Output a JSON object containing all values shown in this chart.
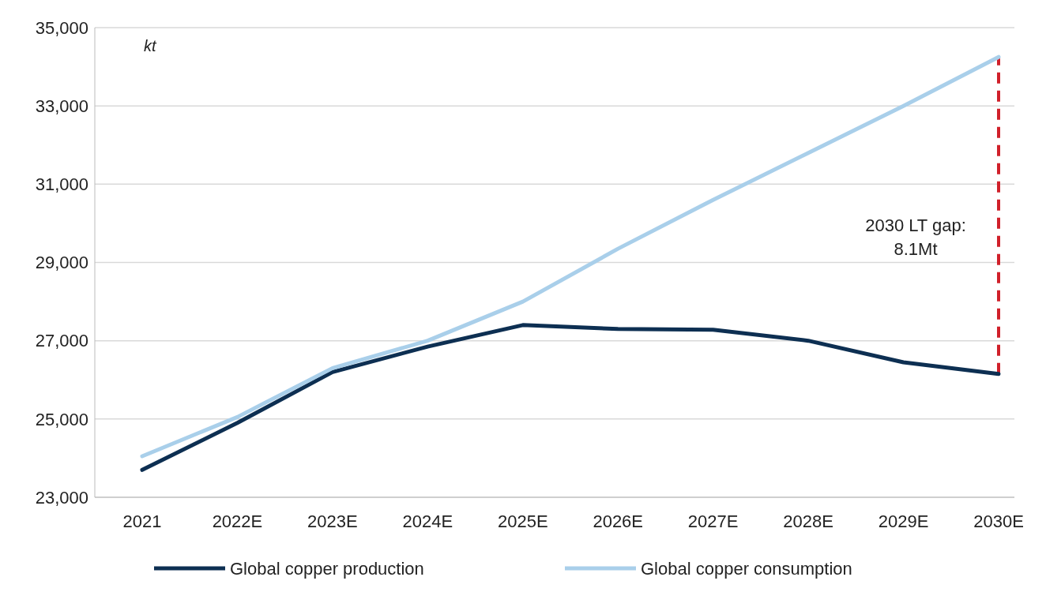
{
  "chart_data": {
    "type": "line",
    "ylabel": "kt",
    "categories": [
      "2021",
      "2022E",
      "2023E",
      "2024E",
      "2025E",
      "2026E",
      "2027E",
      "2028E",
      "2029E",
      "2030E"
    ],
    "series": [
      {
        "name": "Global copper production",
        "color": "#0d2f52",
        "values": [
          23700,
          24900,
          26200,
          26850,
          27400,
          27300,
          27280,
          27000,
          26450,
          26150
        ]
      },
      {
        "name": "Global copper consumption",
        "color": "#a9cfea",
        "values": [
          24050,
          25050,
          26300,
          27000,
          28000,
          29350,
          30600,
          31800,
          33000,
          34250
        ]
      }
    ],
    "ylim": [
      23000,
      35000
    ],
    "yticks": [
      {
        "value": 23000,
        "label": "23,000"
      },
      {
        "value": 25000,
        "label": "25,000"
      },
      {
        "value": 27000,
        "label": "27,000"
      },
      {
        "value": 29000,
        "label": "29,000"
      },
      {
        "value": 31000,
        "label": "31,000"
      },
      {
        "value": 33000,
        "label": "33,000"
      },
      {
        "value": 35000,
        "label": "35,000"
      }
    ],
    "grid": "y",
    "legend": "bottom",
    "ref_lines": [
      {
        "axis": "x",
        "value": "2030E",
        "label": "2030 LT gap:\n8.1Mt",
        "color": "#d0202a",
        "line_style": "dashed"
      }
    ]
  }
}
